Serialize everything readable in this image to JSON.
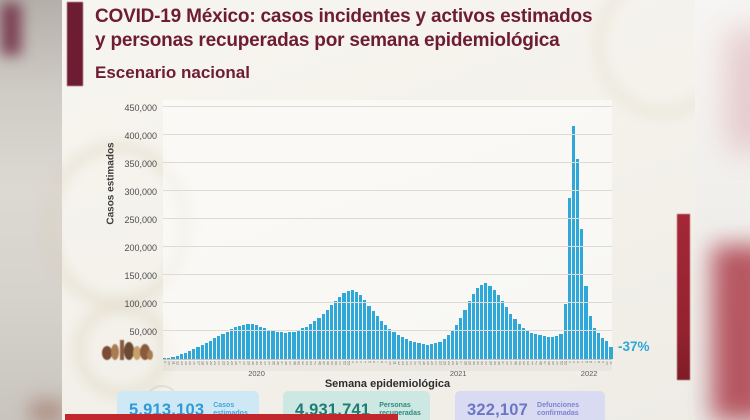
{
  "header": {
    "title_line1": "COVID-19 México: casos incidentes y activos estimados",
    "title_line2": "y personas recuperadas por semana epidemiológica",
    "subtitle": "Escenario nacional"
  },
  "chart_data": {
    "type": "bar",
    "title": "Escenario nacional",
    "ylabel": "Casos estimados",
    "xlabel": "Semana epidemiológica",
    "ylim": [
      0,
      450000
    ],
    "ytick_step": 50000,
    "grid": true,
    "legend": "none",
    "bar_color": "#2ea7d9",
    "annotation": {
      "text": "-37%",
      "color": "#2ea7d9"
    },
    "segments": [
      {
        "year": "2020",
        "start_week": 9,
        "values": [
          1500,
          2500,
          4000,
          6000,
          8500,
          11000,
          14000,
          17500,
          21000,
          25000,
          29000,
          33000,
          37000,
          41000,
          45000,
          49000,
          53000,
          56500,
          59500,
          61500,
          62500,
          62000,
          60000,
          57500,
          55000,
          52000,
          50000,
          48500,
          47500,
          47000,
          47500,
          49000,
          51500,
          54500,
          58000,
          62000,
          67000,
          73000,
          80000,
          88000,
          96000,
          104000,
          111000,
          117000,
          121000
        ]
      },
      {
        "year": "2021",
        "start_week": 1,
        "values": [
          123000,
          120000,
          113500,
          105000,
          95000,
          85000,
          76000,
          67500,
          60000,
          53500,
          48000,
          43000,
          39000,
          35500,
          32500,
          30000,
          28000,
          26500,
          25500,
          26000,
          28000,
          31000,
          35500,
          42000,
          50500,
          61000,
          74000,
          88000,
          103000,
          116000,
          126000,
          133000,
          135000,
          131000,
          124000,
          114000,
          103000,
          92000,
          81000,
          71000,
          63000,
          56000,
          51000,
          47000,
          44000,
          42000,
          41000,
          40000,
          40000,
          41000,
          45000,
          98000
        ]
      },
      {
        "year": "2022",
        "start_week": 1,
        "values": [
          287000,
          416000,
          358000,
          232000,
          130000,
          76000,
          56000,
          46000,
          38000,
          33000,
          21000
        ]
      }
    ]
  },
  "stats": [
    {
      "value": "5,913,103",
      "label": "Casos estimados",
      "value_color": "#2e9bd6",
      "label_color": "#45a5da",
      "bg": "#cfe8f6"
    },
    {
      "value": "4,931,741",
      "label": "Personas recuperadas",
      "value_color": "#1e7c72",
      "label_color": "#2f8a80",
      "bg": "#cde7e2"
    },
    {
      "value": "322,107",
      "label": "Defunciones confirmadas",
      "value_color": "#6d76c6",
      "label_color": "#7d84ce",
      "bg": "#d9dbf2"
    }
  ],
  "colors": {
    "accent_maroon": "#6e1c33",
    "bar_blue": "#2ea7d9",
    "side_bar_red": "#9e2433",
    "progress_red": "#c2272e"
  }
}
